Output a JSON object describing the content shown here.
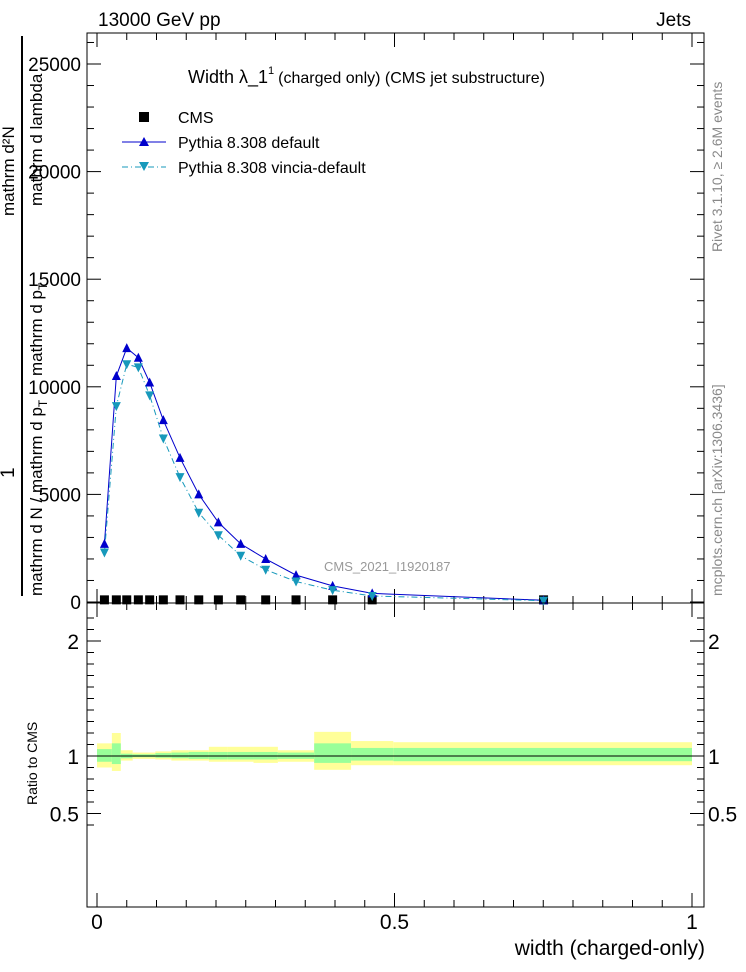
{
  "header": {
    "left": "13000 GeV pp",
    "right": "Jets"
  },
  "plot": {
    "title_main": "Width λ_1",
    "title_sup": "1",
    "title_rest": "(charged only) (CMS jet substructure)",
    "ylabel_num": "1",
    "ylabel_rest": "mathrm d N / mathrm d p",
    "ylabel_den": "mathrm d²N",
    "ylabel_sub": "T",
    "ylabel_den2": "mathrm d p",
    "ylabel_den_sub": "T",
    "ylabel_den3": "mathrm d lambda",
    "analysis_id": "CMS_2021_I1920187",
    "xlabel": "width (charged-only)",
    "ratio_ylabel": "Ratio to CMS"
  },
  "side": {
    "rivet": "Rivet 3.1.10, ≥ 2.6M events",
    "mcplots": "mcplots.cern.ch [arXiv:1306.3436]"
  },
  "colors": {
    "cms": "#000000",
    "default": "#0000cc",
    "vincia": "#1799bb",
    "band_outer": "#ffff99",
    "band_inner": "#99ff99"
  },
  "chart_data": [
    {
      "type": "line",
      "title": "Width λ_1^1 (charged only) (CMS jet substructure)",
      "xlabel": "width (charged-only)",
      "xlim": [
        0,
        1
      ],
      "ylim": [
        0,
        26500
      ],
      "yticks": [
        0,
        5000,
        10000,
        15000,
        20000,
        25000
      ],
      "ytick_labels": [
        "0",
        "5000",
        "10000",
        "15000",
        "20000",
        "25000"
      ],
      "legend_position": "top-left",
      "x": [
        0.0125,
        0.0325,
        0.05,
        0.0695,
        0.0885,
        0.1115,
        0.1395,
        0.171,
        0.204,
        0.2415,
        0.2835,
        0.3345,
        0.396,
        0.4625,
        0.7505
      ],
      "series": [
        {
          "name": "CMS",
          "marker": "square",
          "values": [
            30,
            30,
            30,
            30,
            30,
            30,
            30,
            30,
            30,
            30,
            30,
            30,
            30,
            30,
            30
          ]
        },
        {
          "name": "Pythia 8.308 default",
          "marker": "triangle-up",
          "values": [
            2700,
            10500,
            11800,
            11350,
            10200,
            8450,
            6700,
            5000,
            3700,
            2700,
            2000,
            1250,
            750,
            400,
            80
          ]
        },
        {
          "name": "Pythia 8.308 vincia-default",
          "marker": "triangle-down",
          "values": [
            2300,
            9100,
            11050,
            10900,
            9600,
            7600,
            5800,
            4150,
            3100,
            2150,
            1500,
            950,
            550,
            280,
            60
          ]
        }
      ]
    },
    {
      "type": "area",
      "ylabel": "Ratio to CMS",
      "xlim": [
        0,
        1
      ],
      "ylim": [
        0.35,
        2.3
      ],
      "yticks": [
        0.5,
        1,
        2
      ],
      "ytick_labels": [
        "0.5",
        "1",
        "2"
      ],
      "xticks": [
        0,
        0.5,
        1
      ],
      "xtick_labels": [
        "0",
        "0.5",
        "1"
      ],
      "bin_edges": [
        0,
        0.025,
        0.04,
        0.06,
        0.079,
        0.098,
        0.125,
        0.154,
        0.188,
        0.22,
        0.263,
        0.304,
        0.365,
        0.427,
        0.498,
        1.0
      ],
      "outer_band": {
        "low": [
          0.9,
          0.87,
          0.96,
          0.975,
          0.975,
          0.97,
          0.96,
          0.96,
          0.95,
          0.95,
          0.94,
          0.95,
          0.88,
          0.92,
          0.92
        ],
        "high": [
          1.11,
          1.2,
          1.05,
          1.03,
          1.03,
          1.04,
          1.05,
          1.05,
          1.08,
          1.08,
          1.08,
          1.05,
          1.21,
          1.13,
          1.12
        ]
      },
      "inner_band": {
        "low": [
          0.95,
          0.93,
          0.98,
          0.99,
          0.99,
          0.985,
          0.98,
          0.975,
          0.97,
          0.97,
          0.97,
          0.975,
          0.94,
          0.96,
          0.955
        ],
        "high": [
          1.06,
          1.11,
          1.02,
          1.015,
          1.015,
          1.025,
          1.03,
          1.035,
          1.035,
          1.035,
          1.035,
          1.03,
          1.11,
          1.07,
          1.07
        ]
      }
    }
  ]
}
